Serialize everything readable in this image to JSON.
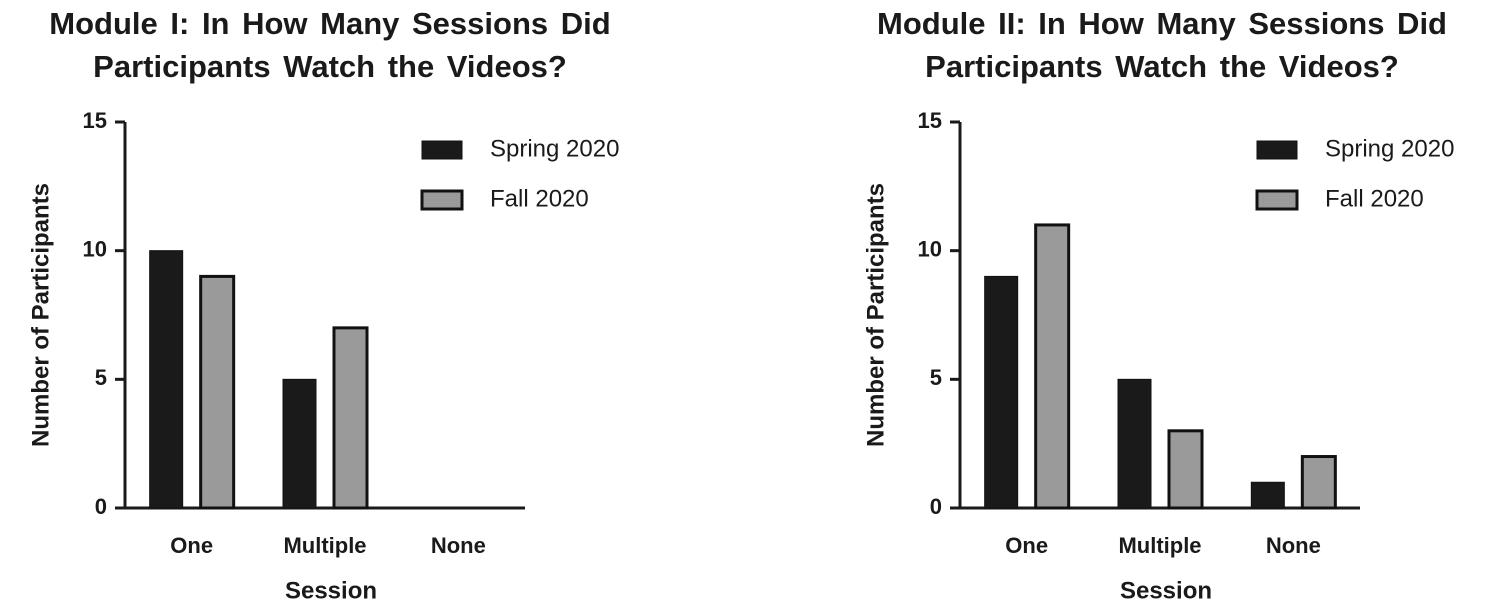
{
  "chart_data": [
    {
      "type": "bar",
      "title": "Module I: In How Many Sessions Did Participants Watch the Videos?",
      "x_label": "Session",
      "y_label": "Number of Participants",
      "categories": [
        "One",
        "Multiple",
        "None"
      ],
      "series": [
        {
          "name": "Spring 2020",
          "color": "#1a1a1a",
          "values": [
            10,
            5,
            0
          ]
        },
        {
          "name": "Fall 2020",
          "color": "#9a9a9a",
          "values": [
            9,
            7,
            0
          ]
        }
      ],
      "ylim": [
        0,
        15
      ],
      "yticks": [
        0,
        5,
        10,
        15
      ],
      "legend": "top-right"
    },
    {
      "type": "bar",
      "title": "Module II: In How Many Sessions Did Participants Watch the Videos?",
      "x_label": "Session",
      "y_label": "Number of Participants",
      "categories": [
        "One",
        "Multiple",
        "None"
      ],
      "series": [
        {
          "name": "Spring 2020",
          "color": "#1a1a1a",
          "values": [
            9,
            5,
            1
          ]
        },
        {
          "name": "Fall 2020",
          "color": "#9a9a9a",
          "values": [
            11,
            3,
            2
          ]
        }
      ],
      "ylim": [
        0,
        15
      ],
      "yticks": [
        0,
        5,
        10,
        15
      ],
      "legend": "top-right"
    }
  ]
}
